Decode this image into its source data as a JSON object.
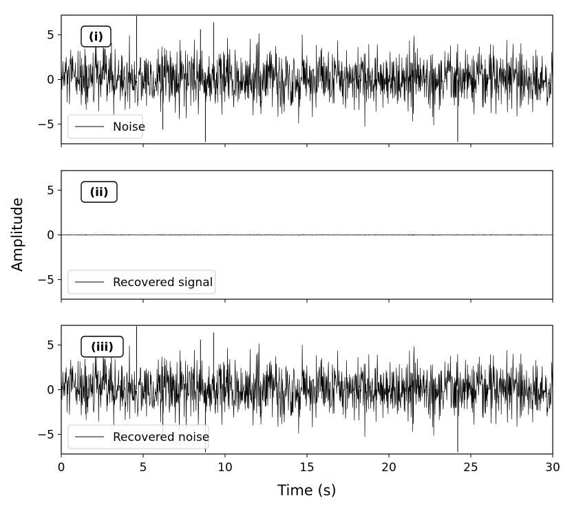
{
  "chart_data": {
    "type": "line",
    "xlabel": "Time (s)",
    "ylabel": "Amplitude",
    "xlim": [
      0,
      30
    ],
    "ylim": [
      -7.2,
      7.2
    ],
    "x_ticks": [
      "0",
      "5",
      "10",
      "15",
      "20",
      "25",
      "30"
    ],
    "y_ticks": [
      "5",
      "0",
      "−5"
    ],
    "grid": false,
    "sampled_points": 1500,
    "panels": [
      {
        "tag": "(i)",
        "legend": "Noise",
        "legend_position": "lower-left",
        "series": {
          "name": "Noise",
          "color": "#000000",
          "std": 1.7,
          "peaks": [
            [
              4.6,
              7.1
            ],
            [
              8.8,
              -7.0
            ],
            [
              9.3,
              6.4
            ],
            [
              24.2,
              -7.0
            ],
            [
              8.5,
              5.6
            ],
            [
              6.2,
              -5.6
            ]
          ]
        }
      },
      {
        "tag": "(ii)",
        "legend": "Recovered signal",
        "legend_position": "lower-left",
        "series": {
          "name": "Recovered signal",
          "color": "#000000",
          "std": 0.02,
          "peaks": []
        }
      },
      {
        "tag": "(iii)",
        "legend": "Recovered noise",
        "legend_position": "lower-left",
        "series": {
          "name": "Recovered noise",
          "color": "#000000",
          "std": 1.7,
          "peaks": [
            [
              4.6,
              7.1
            ],
            [
              8.8,
              -7.0
            ],
            [
              9.3,
              6.4
            ],
            [
              24.2,
              -7.0
            ],
            [
              8.5,
              5.6
            ],
            [
              6.2,
              -5.6
            ]
          ]
        }
      }
    ]
  }
}
